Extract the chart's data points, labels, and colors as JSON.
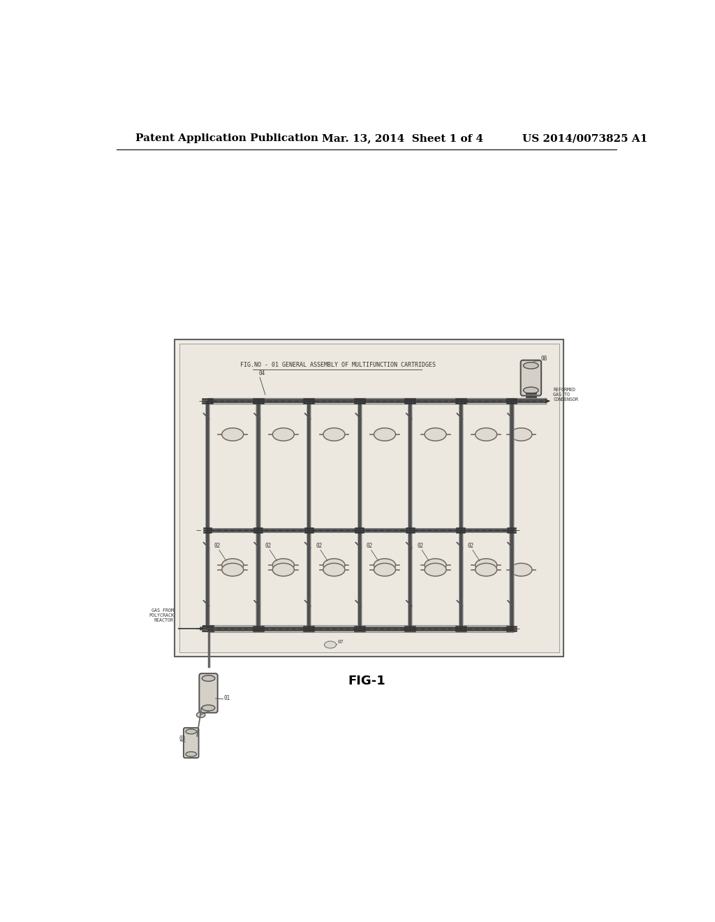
{
  "page_bg": "#ffffff",
  "header_left": "Patent Application Publication",
  "header_center": "Mar. 13, 2014  Sheet 1 of 4",
  "header_right": "US 2014/0073825 A1",
  "header_fontsize": 11,
  "caption": "FIG-1",
  "diagram_title": "FIG.NO - 01 GENERAL ASSEMBLY OF MULTIFUNCTION CARTRIDGES",
  "num_columns": 7
}
